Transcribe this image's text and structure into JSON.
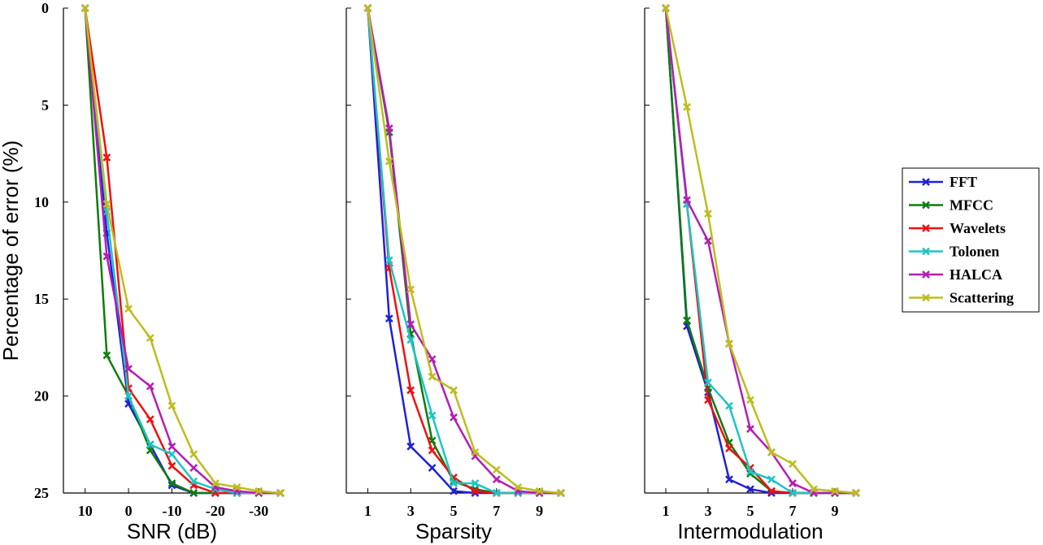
{
  "chart_data": [
    {
      "type": "line",
      "x_label": "SNR (dB)",
      "y_label": "Percentage of error (%)",
      "x": [
        10,
        5,
        0,
        -5,
        -10,
        -15,
        -20,
        -25,
        -30,
        -35
      ],
      "xlim": [
        15,
        -35
      ],
      "xticks": [
        10,
        0,
        -10,
        -20,
        -30
      ],
      "ylim": [
        0,
        25
      ],
      "yticks": [
        0,
        5,
        10,
        15,
        20,
        25
      ],
      "y_inverted": true,
      "legend": "right",
      "series": [
        {
          "name": "FFT",
          "color": "#1f1fdc",
          "values": [
            0,
            11.6,
            20.4,
            22.5,
            24.6,
            25,
            25,
            25,
            25,
            25
          ]
        },
        {
          "name": "MFCC",
          "color": "#0d7d0d",
          "values": [
            0,
            17.9,
            20,
            22.8,
            24.5,
            25,
            25,
            25,
            25,
            25
          ]
        },
        {
          "name": "Wavelets",
          "color": "#f01010",
          "values": [
            0,
            7.7,
            19.6,
            21.2,
            23.6,
            24.6,
            25,
            25,
            25,
            25
          ]
        },
        {
          "name": "Tolonen",
          "color": "#20c4c4",
          "values": [
            0,
            10.5,
            20,
            22.5,
            23,
            24.4,
            24.8,
            25,
            25,
            25
          ]
        },
        {
          "name": "HALCA",
          "color": "#b41eb4",
          "values": [
            0,
            12.8,
            18.6,
            19.5,
            22.6,
            23.7,
            24.7,
            24.9,
            25,
            25
          ]
        },
        {
          "name": "Scattering",
          "color": "#bdbd1e",
          "values": [
            0,
            10.1,
            15.5,
            17,
            20.5,
            23,
            24.5,
            24.7,
            24.9,
            25
          ]
        }
      ]
    },
    {
      "type": "line",
      "x_label": "Sparsity",
      "x": [
        1,
        2,
        3,
        4,
        5,
        6,
        7,
        8,
        9,
        10
      ],
      "xlim": [
        0,
        10
      ],
      "xticks": [
        1,
        3,
        5,
        7,
        9
      ],
      "ylim": [
        0,
        25
      ],
      "y_inverted": true,
      "series": [
        {
          "name": "FFT",
          "color": "#1f1fdc",
          "values": [
            0,
            16,
            22.6,
            23.7,
            24.9,
            25,
            25,
            25,
            25,
            25
          ]
        },
        {
          "name": "MFCC",
          "color": "#0d7d0d",
          "values": [
            0,
            6.4,
            16.8,
            22.3,
            24.4,
            24.8,
            25,
            25,
            25,
            25
          ]
        },
        {
          "name": "Wavelets",
          "color": "#f01010",
          "values": [
            0,
            13.4,
            19.7,
            22.8,
            24.2,
            24.9,
            25,
            25,
            25,
            25
          ]
        },
        {
          "name": "Tolonen",
          "color": "#20c4c4",
          "values": [
            0,
            13,
            17.1,
            21,
            24.5,
            24.5,
            25,
            25,
            25,
            25
          ]
        },
        {
          "name": "HALCA",
          "color": "#b41eb4",
          "values": [
            0,
            6.2,
            16.3,
            18.1,
            21.1,
            23.1,
            24.3,
            24.9,
            25,
            25
          ]
        },
        {
          "name": "Scattering",
          "color": "#bdbd1e",
          "values": [
            0,
            7.9,
            14.5,
            19,
            19.7,
            22.9,
            23.8,
            24.7,
            24.9,
            25
          ]
        }
      ]
    },
    {
      "type": "line",
      "x_label": "Intermodulation",
      "x": [
        1,
        2,
        3,
        4,
        5,
        6,
        7,
        8,
        9,
        10
      ],
      "xlim": [
        0,
        10
      ],
      "xticks": [
        1,
        3,
        5,
        7,
        9
      ],
      "ylim": [
        0,
        25
      ],
      "y_inverted": true,
      "series": [
        {
          "name": "FFT",
          "color": "#1f1fdc",
          "values": [
            0,
            16.4,
            19.8,
            24.3,
            24.8,
            25,
            25,
            25,
            25,
            25
          ]
        },
        {
          "name": "MFCC",
          "color": "#0d7d0d",
          "values": [
            0,
            16.1,
            19.6,
            22.4,
            24,
            24.9,
            25,
            25,
            25,
            25
          ]
        },
        {
          "name": "Wavelets",
          "color": "#f01010",
          "values": [
            0,
            10.1,
            20.2,
            22.7,
            23.7,
            24.9,
            25,
            25,
            25,
            25
          ]
        },
        {
          "name": "Tolonen",
          "color": "#20c4c4",
          "values": [
            0,
            10.1,
            19.3,
            20.5,
            23.9,
            24.3,
            25,
            25,
            25,
            25
          ]
        },
        {
          "name": "HALCA",
          "color": "#b41eb4",
          "values": [
            0,
            9.9,
            12,
            17.3,
            21.7,
            22.9,
            24.5,
            25,
            25,
            25
          ]
        },
        {
          "name": "Scattering",
          "color": "#bdbd1e",
          "values": [
            0,
            5.1,
            10.6,
            17.3,
            20.2,
            22.9,
            23.5,
            24.8,
            24.9,
            25
          ]
        }
      ]
    }
  ]
}
